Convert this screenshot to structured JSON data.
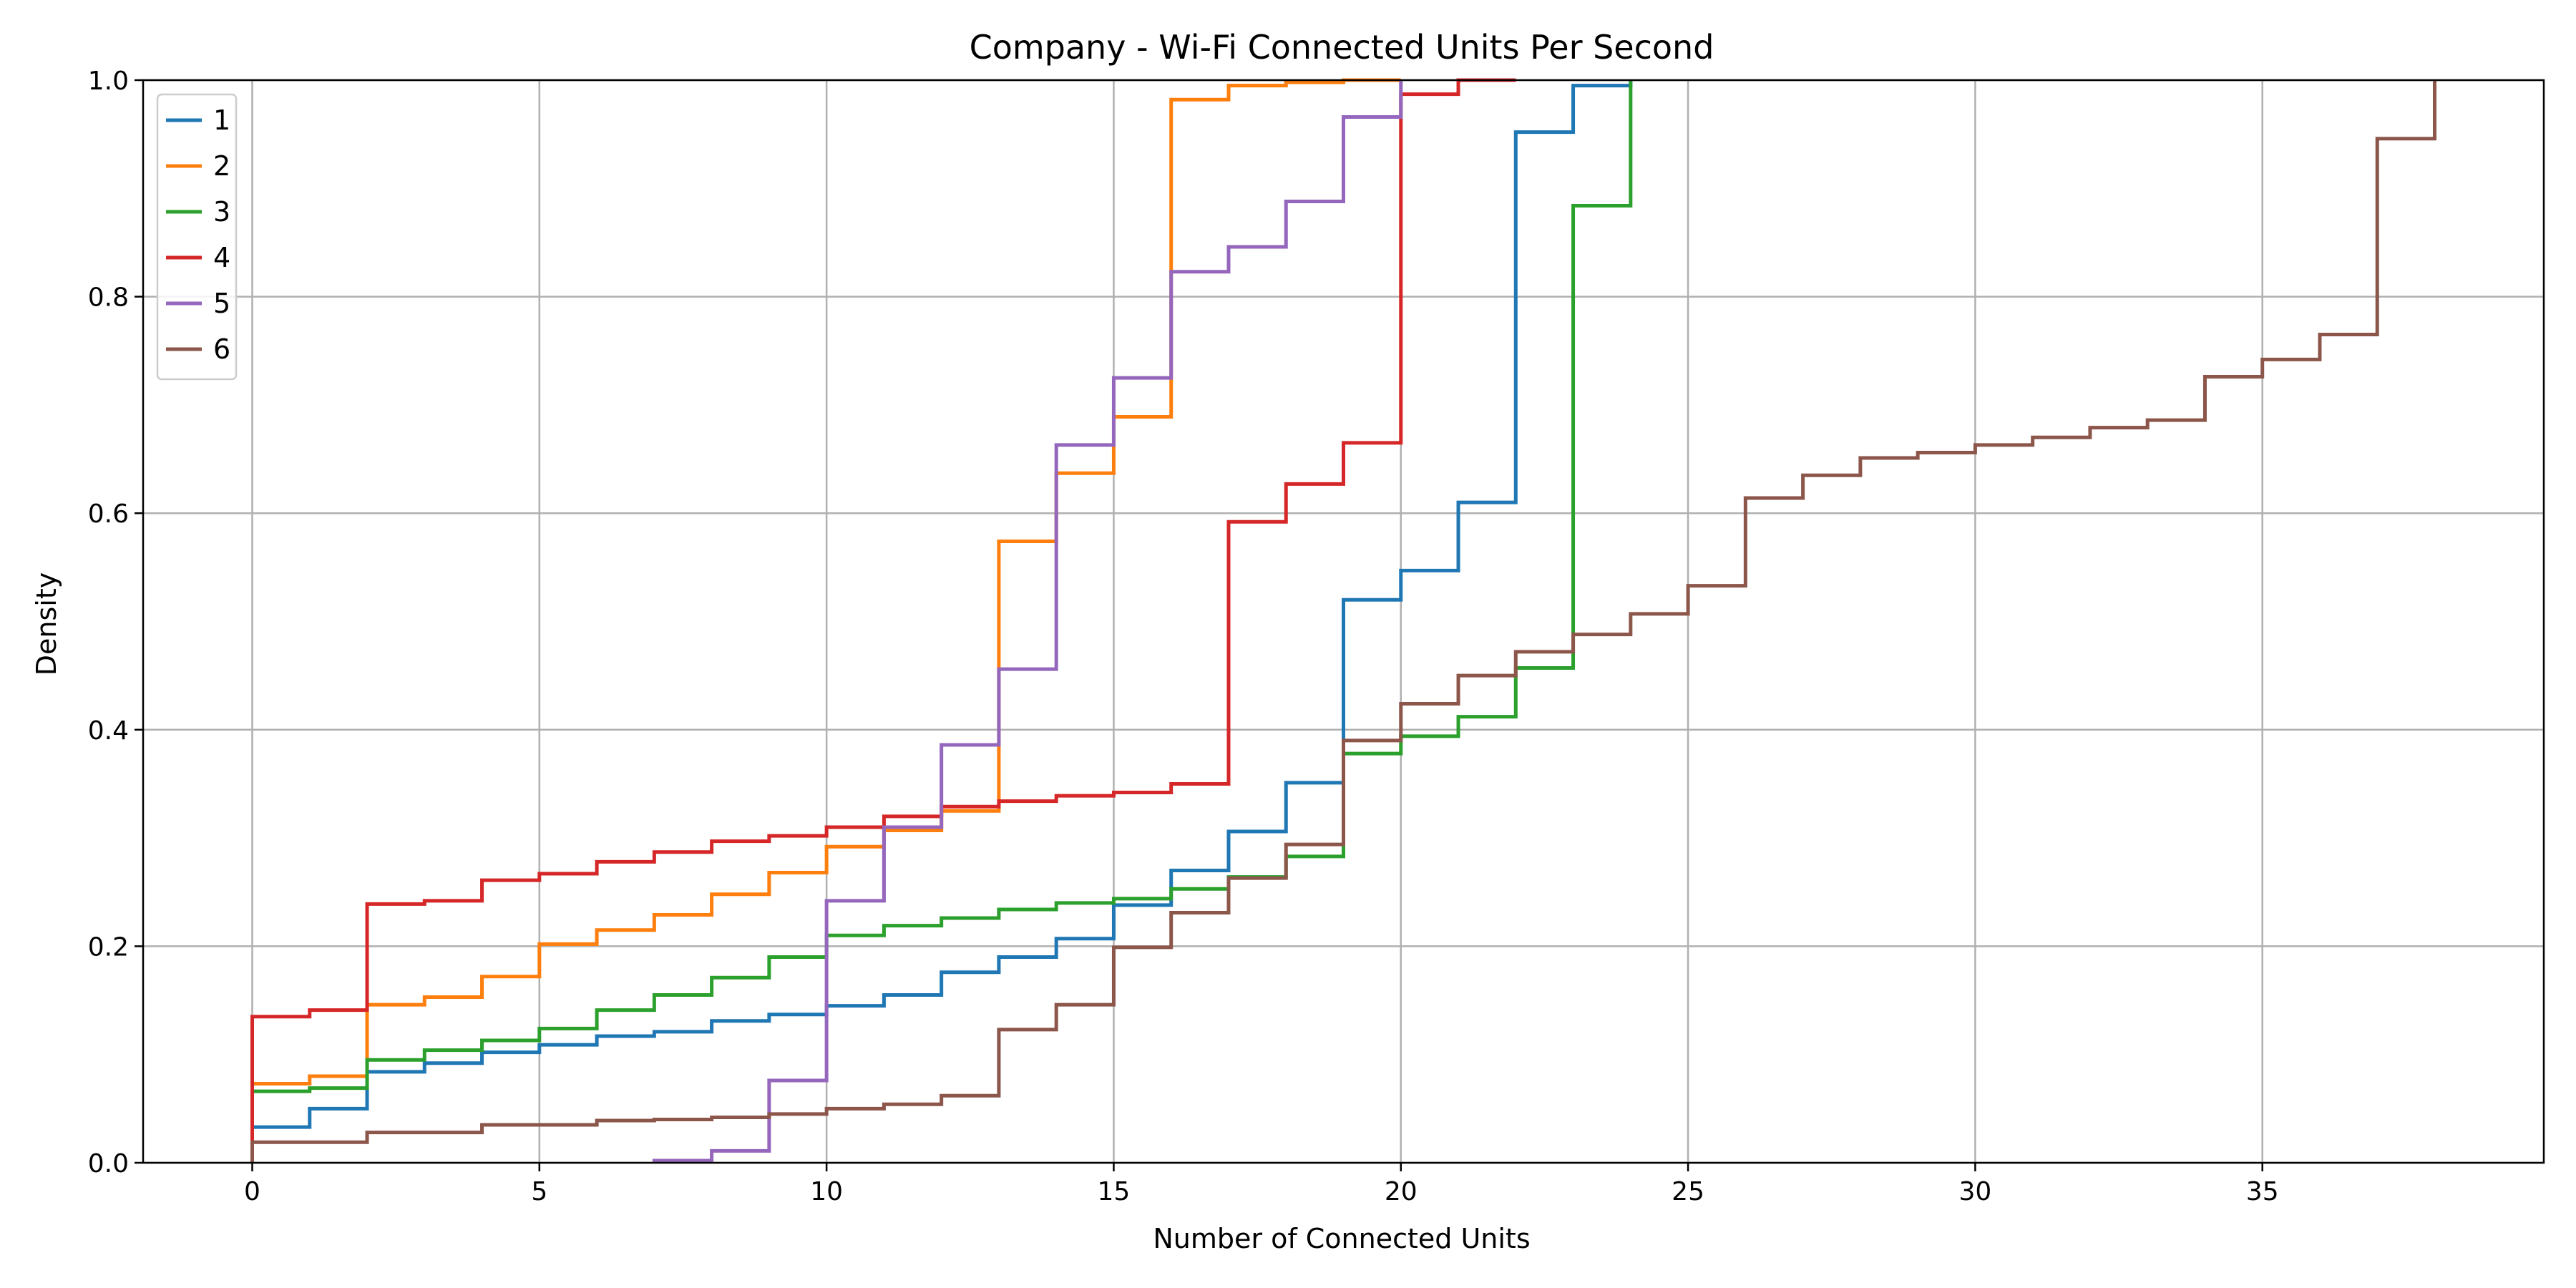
{
  "chart_data": {
    "type": "line",
    "step": "post",
    "title": "Company - Wi-Fi Connected Units Per Second",
    "xlabel": "Number of Connected Units",
    "ylabel": "Density",
    "xlim": [
      -1.9,
      39.9
    ],
    "ylim": [
      0.0,
      1.0
    ],
    "xticks": [
      0,
      5,
      10,
      15,
      20,
      25,
      30,
      35
    ],
    "yticks": [
      0.0,
      0.2,
      0.4,
      0.6,
      0.8,
      1.0
    ],
    "xtick_labels": [
      "0",
      "5",
      "10",
      "15",
      "20",
      "25",
      "30",
      "35"
    ],
    "ytick_labels": [
      "0.0",
      "0.2",
      "0.4",
      "0.6",
      "0.8",
      "1.0"
    ],
    "grid": true,
    "legend_position": "upper-left",
    "series": [
      {
        "name": "1",
        "color": "#1f77b4",
        "x": [
          0,
          1,
          2,
          3,
          4,
          5,
          6,
          7,
          8,
          9,
          10,
          11,
          12,
          13,
          14,
          15,
          16,
          17,
          18,
          19,
          20,
          21,
          22,
          23,
          24
        ],
        "y": [
          0.033,
          0.05,
          0.084,
          0.092,
          0.102,
          0.109,
          0.117,
          0.121,
          0.131,
          0.137,
          0.145,
          0.155,
          0.176,
          0.19,
          0.207,
          0.238,
          0.27,
          0.306,
          0.351,
          0.52,
          0.547,
          0.61,
          0.952,
          0.995,
          1.0
        ]
      },
      {
        "name": "2",
        "color": "#ff7f0e",
        "x": [
          0,
          1,
          2,
          3,
          4,
          5,
          6,
          7,
          8,
          9,
          10,
          11,
          12,
          13,
          14,
          15,
          16,
          17,
          18,
          19,
          20
        ],
        "y": [
          0.073,
          0.08,
          0.146,
          0.153,
          0.172,
          0.202,
          0.215,
          0.229,
          0.248,
          0.268,
          0.292,
          0.307,
          0.325,
          0.574,
          0.637,
          0.689,
          0.982,
          0.995,
          0.998,
          1.0,
          1.0
        ]
      },
      {
        "name": "3",
        "color": "#2ca02c",
        "x": [
          0,
          1,
          2,
          3,
          4,
          5,
          6,
          7,
          8,
          9,
          10,
          11,
          12,
          13,
          14,
          15,
          16,
          17,
          18,
          19,
          20,
          21,
          22,
          23,
          24
        ],
        "y": [
          0.066,
          0.069,
          0.095,
          0.104,
          0.113,
          0.124,
          0.141,
          0.155,
          0.171,
          0.19,
          0.21,
          0.219,
          0.226,
          0.234,
          0.24,
          0.244,
          0.253,
          0.264,
          0.283,
          0.378,
          0.394,
          0.412,
          0.457,
          0.884,
          1.0
        ]
      },
      {
        "name": "4",
        "color": "#d62728",
        "x": [
          0,
          1,
          2,
          3,
          4,
          5,
          6,
          7,
          8,
          9,
          10,
          11,
          12,
          13,
          14,
          15,
          16,
          17,
          18,
          19,
          20,
          21,
          22
        ],
        "y": [
          0.135,
          0.141,
          0.239,
          0.242,
          0.261,
          0.267,
          0.278,
          0.287,
          0.297,
          0.302,
          0.31,
          0.32,
          0.329,
          0.334,
          0.339,
          0.342,
          0.35,
          0.592,
          0.627,
          0.665,
          0.987,
          1.0,
          1.0
        ]
      },
      {
        "name": "5",
        "color": "#9467bd",
        "x": [
          7,
          8,
          9,
          10,
          11,
          12,
          13,
          14,
          15,
          16,
          17,
          18,
          19,
          20
        ],
        "y": [
          0.002,
          0.011,
          0.076,
          0.242,
          0.31,
          0.386,
          0.456,
          0.663,
          0.725,
          0.823,
          0.846,
          0.888,
          0.966,
          1.0
        ]
      },
      {
        "name": "6",
        "color": "#8c564b",
        "x": [
          0,
          1,
          2,
          3,
          4,
          5,
          6,
          7,
          8,
          9,
          10,
          11,
          12,
          13,
          14,
          15,
          16,
          17,
          18,
          19,
          20,
          21,
          22,
          23,
          24,
          25,
          26,
          27,
          28,
          29,
          30,
          31,
          32,
          33,
          34,
          35,
          36,
          37,
          38
        ],
        "y": [
          0.019,
          0.019,
          0.028,
          0.028,
          0.035,
          0.035,
          0.039,
          0.04,
          0.042,
          0.045,
          0.05,
          0.054,
          0.062,
          0.123,
          0.146,
          0.199,
          0.231,
          0.263,
          0.294,
          0.39,
          0.424,
          0.45,
          0.472,
          0.488,
          0.507,
          0.533,
          0.614,
          0.635,
          0.651,
          0.656,
          0.663,
          0.67,
          0.679,
          0.686,
          0.726,
          0.742,
          0.765,
          0.946,
          1.0
        ]
      }
    ]
  }
}
